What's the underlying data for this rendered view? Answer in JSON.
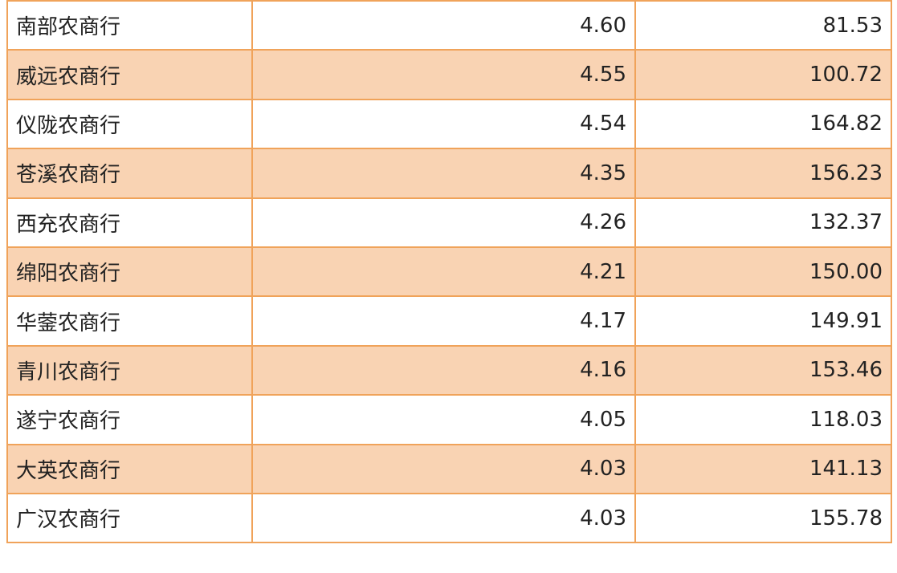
{
  "table": {
    "rows": [
      [
        "南部农商行",
        "4.60",
        "81.53"
      ],
      [
        "威远农商行",
        "4.55",
        "100.72"
      ],
      [
        "仪陇农商行",
        "4.54",
        "164.82"
      ],
      [
        "苍溪农商行",
        "4.35",
        "156.23"
      ],
      [
        "西充农商行",
        "4.26",
        "132.37"
      ],
      [
        "绵阳农商行",
        "4.21",
        "150.00"
      ],
      [
        "华蓥农商行",
        "4.17",
        "149.91"
      ],
      [
        "青川农商行",
        "4.16",
        "153.46"
      ],
      [
        "遂宁农商行",
        "4.05",
        "118.03"
      ],
      [
        "大英农商行",
        "4.03",
        "141.13"
      ],
      [
        "广汉农商行",
        "4.03",
        "155.78"
      ]
    ]
  }
}
